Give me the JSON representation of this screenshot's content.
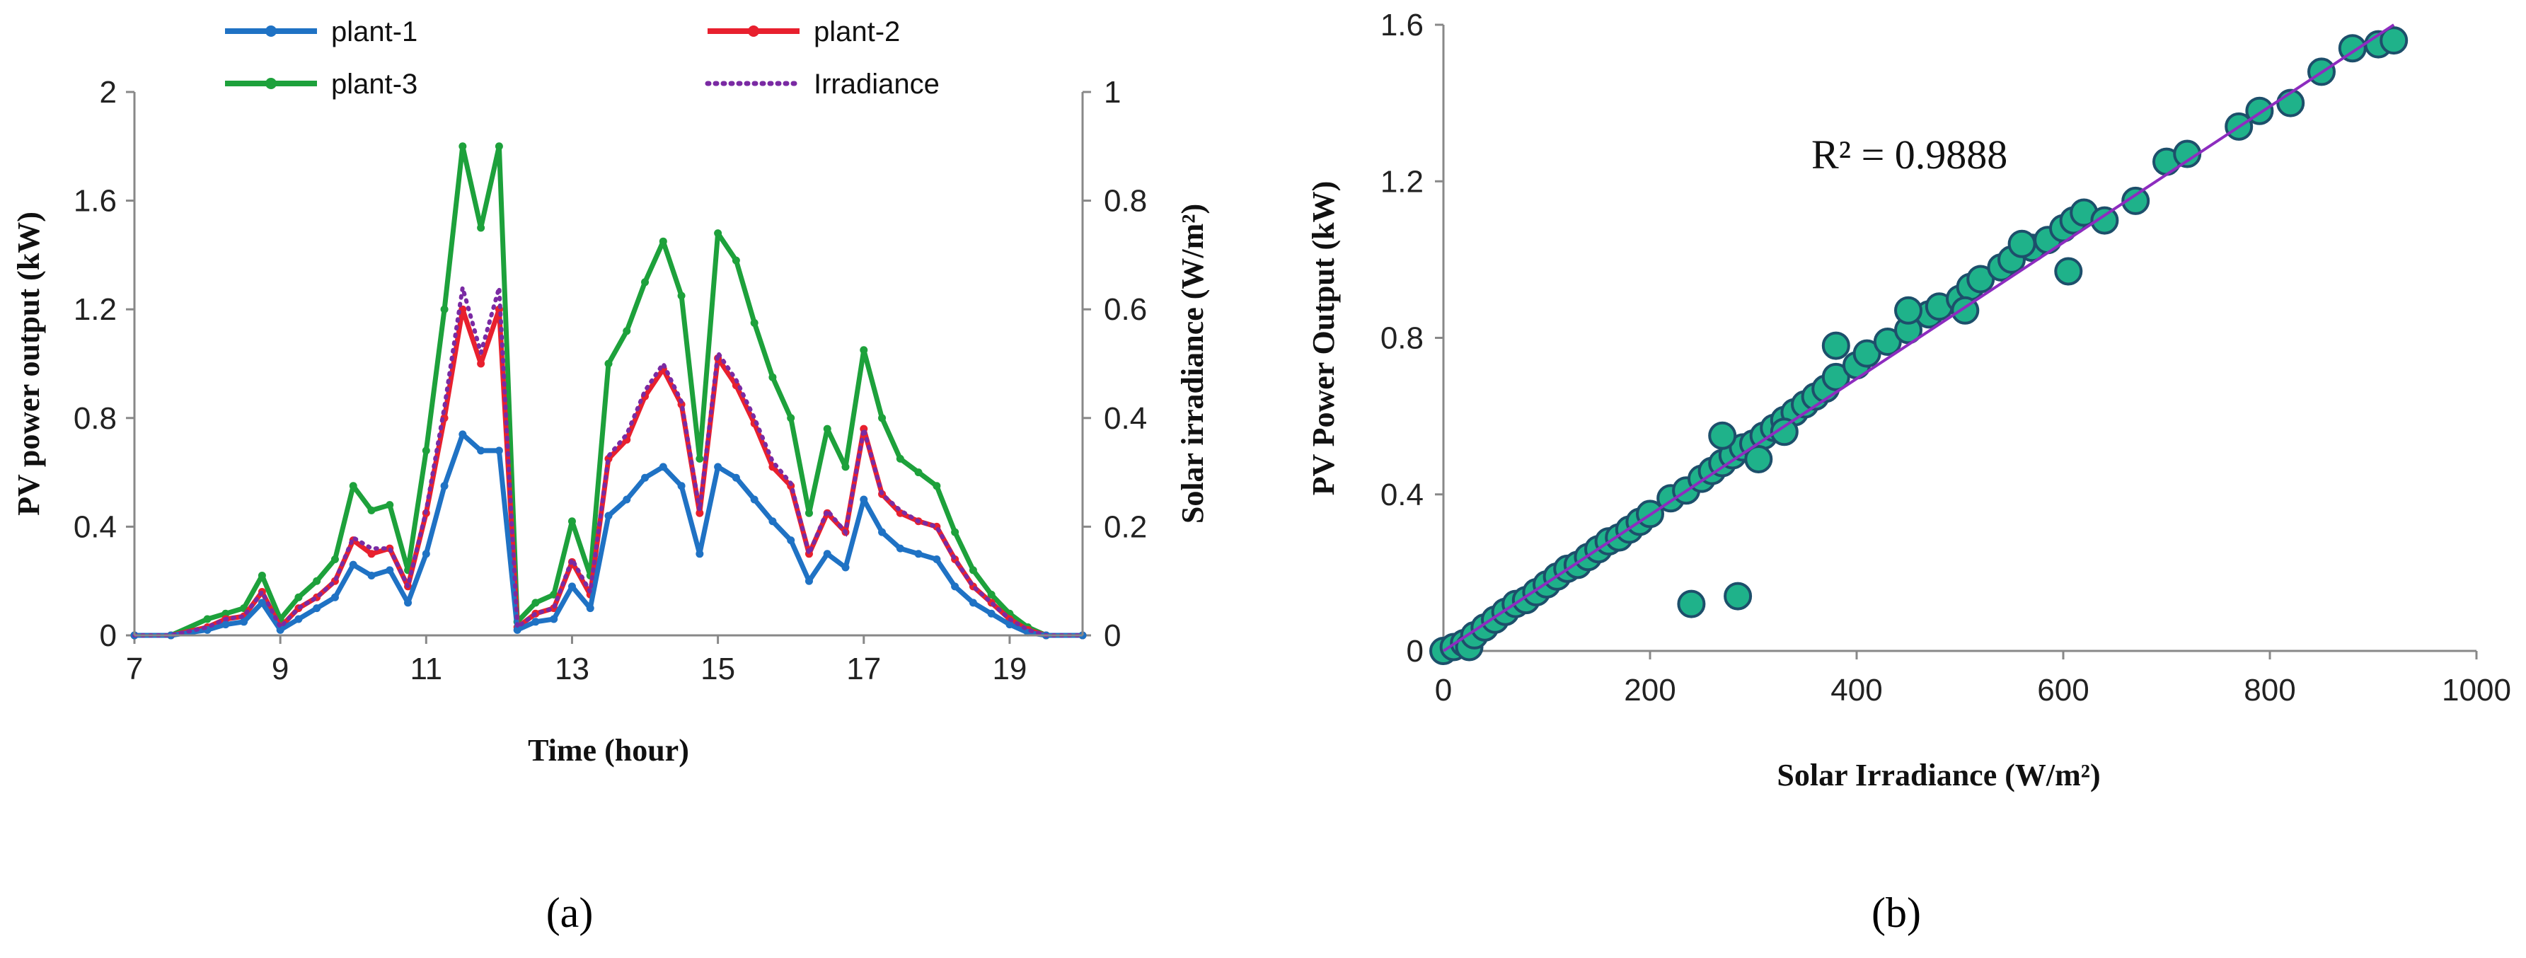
{
  "panels": {
    "a": "(a)",
    "b": "(b)"
  },
  "colors": {
    "plant1": "#1f72c4",
    "plant2": "#e8202e",
    "plant3": "#1da13b",
    "irradiance": "#7a2aa3",
    "scatter_fill": "#1fb28a",
    "scatter_edge": "#1d4f6b",
    "fit_line": "#8d2cbf"
  },
  "chart_data": [
    {
      "type": "line",
      "xlabel": "Time (hour)",
      "ylabel": "PV power output (kW)",
      "y2label": "Solar irradiance (W/m²)",
      "xlim": [
        7,
        20
      ],
      "ylim": [
        0,
        2
      ],
      "y2lim": [
        0,
        1
      ],
      "xticks": [
        "7",
        "9",
        "11",
        "13",
        "15",
        "17",
        "19"
      ],
      "yticks": [
        "0",
        "0.4",
        "0.8",
        "1.2",
        "1.6",
        "2"
      ],
      "y2ticks": [
        "0",
        "0.2",
        "0.4",
        "0.6",
        "0.8",
        "1"
      ],
      "legend_position": "top",
      "x": [
        7,
        7.5,
        8,
        8.25,
        8.5,
        8.75,
        9,
        9.25,
        9.5,
        9.75,
        10,
        10.25,
        10.5,
        10.75,
        11,
        11.25,
        11.5,
        11.75,
        12,
        12.25,
        12.5,
        12.75,
        13,
        13.25,
        13.5,
        13.75,
        14,
        14.25,
        14.5,
        14.75,
        15,
        15.25,
        15.5,
        15.75,
        16,
        16.25,
        16.5,
        16.75,
        17,
        17.25,
        17.5,
        17.75,
        18,
        18.25,
        18.5,
        18.75,
        19,
        19.25,
        19.5,
        20
      ],
      "series": [
        {
          "name": "plant-1",
          "axis": "left",
          "values": [
            0,
            0,
            0.02,
            0.04,
            0.05,
            0.12,
            0.02,
            0.06,
            0.1,
            0.14,
            0.26,
            0.22,
            0.24,
            0.12,
            0.3,
            0.55,
            0.74,
            0.68,
            0.68,
            0.02,
            0.05,
            0.06,
            0.18,
            0.1,
            0.44,
            0.5,
            0.58,
            0.62,
            0.55,
            0.3,
            0.62,
            0.58,
            0.5,
            0.42,
            0.35,
            0.2,
            0.3,
            0.25,
            0.5,
            0.38,
            0.32,
            0.3,
            0.28,
            0.18,
            0.12,
            0.08,
            0.04,
            0.01,
            0,
            0
          ]
        },
        {
          "name": "plant-2",
          "axis": "left",
          "values": [
            0,
            0,
            0.03,
            0.06,
            0.07,
            0.16,
            0.03,
            0.1,
            0.14,
            0.2,
            0.35,
            0.3,
            0.32,
            0.18,
            0.45,
            0.8,
            1.2,
            1.0,
            1.2,
            0.03,
            0.08,
            0.1,
            0.27,
            0.15,
            0.65,
            0.72,
            0.88,
            0.98,
            0.85,
            0.45,
            1.02,
            0.92,
            0.78,
            0.62,
            0.55,
            0.3,
            0.45,
            0.38,
            0.76,
            0.52,
            0.45,
            0.42,
            0.4,
            0.28,
            0.18,
            0.12,
            0.06,
            0.02,
            0,
            0
          ]
        },
        {
          "name": "plant-3",
          "axis": "left",
          "values": [
            0,
            0,
            0.06,
            0.08,
            0.1,
            0.22,
            0.06,
            0.14,
            0.2,
            0.28,
            0.55,
            0.46,
            0.48,
            0.24,
            0.68,
            1.2,
            1.8,
            1.5,
            1.8,
            0.05,
            0.12,
            0.15,
            0.42,
            0.22,
            1.0,
            1.12,
            1.3,
            1.45,
            1.25,
            0.65,
            1.48,
            1.38,
            1.15,
            0.95,
            0.8,
            0.45,
            0.76,
            0.62,
            1.05,
            0.8,
            0.65,
            0.6,
            0.55,
            0.38,
            0.24,
            0.15,
            0.08,
            0.03,
            0,
            0
          ]
        },
        {
          "name": "Irradiance",
          "axis": "right",
          "values": [
            0,
            0,
            0.015,
            0.03,
            0.035,
            0.08,
            0.015,
            0.05,
            0.07,
            0.1,
            0.18,
            0.16,
            0.16,
            0.09,
            0.23,
            0.42,
            0.64,
            0.52,
            0.64,
            0.015,
            0.04,
            0.05,
            0.14,
            0.08,
            0.33,
            0.37,
            0.45,
            0.5,
            0.43,
            0.23,
            0.52,
            0.47,
            0.4,
            0.32,
            0.28,
            0.15,
            0.23,
            0.19,
            0.38,
            0.26,
            0.23,
            0.21,
            0.2,
            0.14,
            0.09,
            0.06,
            0.03,
            0.01,
            0,
            0
          ]
        }
      ]
    },
    {
      "type": "scatter",
      "xlabel": "Solar Irradiance (W/m²)",
      "ylabel": "PV Power Output (kW)",
      "xlim": [
        0,
        1000
      ],
      "ylim": [
        0,
        1.6
      ],
      "xticks": [
        "0",
        "200",
        "400",
        "600",
        "800",
        "1000"
      ],
      "yticks": [
        "0",
        "0.4",
        "0.8",
        "1.2",
        "1.6"
      ],
      "annotation": "R² = 0.9888",
      "trendline": {
        "type": "linear",
        "x": [
          0,
          920
        ],
        "y": [
          0,
          1.6
        ]
      },
      "points": [
        [
          0,
          0
        ],
        [
          10,
          0.01
        ],
        [
          20,
          0.02
        ],
        [
          25,
          0.01
        ],
        [
          30,
          0.04
        ],
        [
          40,
          0.06
        ],
        [
          50,
          0.08
        ],
        [
          60,
          0.1
        ],
        [
          70,
          0.12
        ],
        [
          80,
          0.13
        ],
        [
          90,
          0.15
        ],
        [
          100,
          0.17
        ],
        [
          110,
          0.19
        ],
        [
          120,
          0.21
        ],
        [
          130,
          0.22
        ],
        [
          140,
          0.24
        ],
        [
          150,
          0.26
        ],
        [
          160,
          0.28
        ],
        [
          170,
          0.29
        ],
        [
          180,
          0.31
        ],
        [
          190,
          0.33
        ],
        [
          200,
          0.35
        ],
        [
          220,
          0.39
        ],
        [
          235,
          0.41
        ],
        [
          250,
          0.44
        ],
        [
          260,
          0.46
        ],
        [
          270,
          0.48
        ],
        [
          280,
          0.5
        ],
        [
          290,
          0.52
        ],
        [
          300,
          0.53
        ],
        [
          310,
          0.55
        ],
        [
          320,
          0.57
        ],
        [
          330,
          0.59
        ],
        [
          340,
          0.61
        ],
        [
          350,
          0.63
        ],
        [
          360,
          0.65
        ],
        [
          370,
          0.67
        ],
        [
          380,
          0.7
        ],
        [
          400,
          0.73
        ],
        [
          410,
          0.76
        ],
        [
          430,
          0.79
        ],
        [
          450,
          0.82
        ],
        [
          470,
          0.86
        ],
        [
          480,
          0.88
        ],
        [
          500,
          0.9
        ],
        [
          510,
          0.93
        ],
        [
          520,
          0.95
        ],
        [
          540,
          0.98
        ],
        [
          550,
          1.0
        ],
        [
          570,
          1.03
        ],
        [
          585,
          1.05
        ],
        [
          600,
          1.08
        ],
        [
          610,
          1.1
        ],
        [
          620,
          1.12
        ],
        [
          640,
          1.1
        ],
        [
          670,
          1.15
        ],
        [
          700,
          1.25
        ],
        [
          720,
          1.27
        ],
        [
          770,
          1.34
        ],
        [
          790,
          1.38
        ],
        [
          820,
          1.4
        ],
        [
          850,
          1.48
        ],
        [
          880,
          1.54
        ],
        [
          905,
          1.55
        ],
        [
          920,
          1.56
        ],
        [
          240,
          0.12
        ],
        [
          285,
          0.14
        ],
        [
          305,
          0.49
        ],
        [
          505,
          0.87
        ],
        [
          605,
          0.97
        ],
        [
          560,
          1.04
        ],
        [
          380,
          0.78
        ],
        [
          330,
          0.56
        ],
        [
          270,
          0.55
        ],
        [
          450,
          0.87
        ]
      ]
    }
  ]
}
